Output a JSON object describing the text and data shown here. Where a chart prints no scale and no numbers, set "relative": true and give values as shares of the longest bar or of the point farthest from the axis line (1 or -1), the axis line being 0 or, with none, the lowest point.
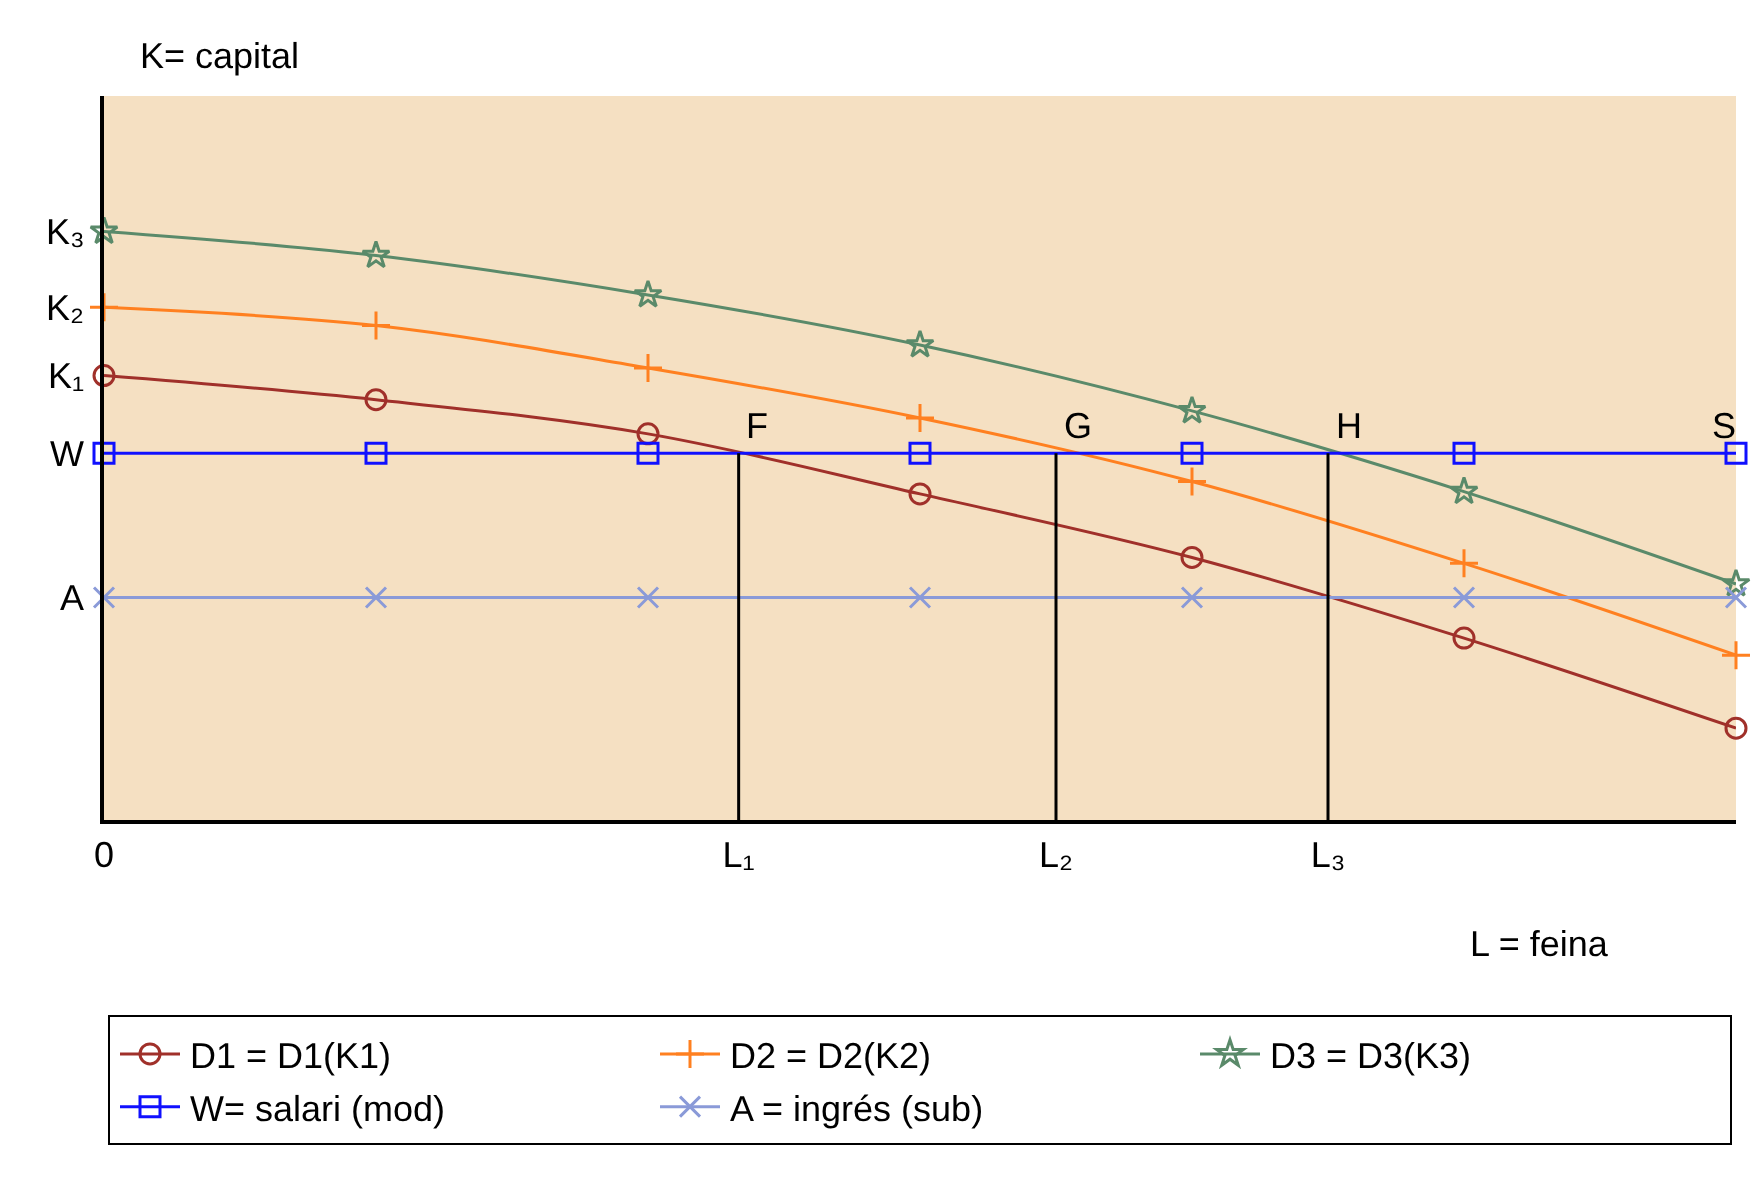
{
  "chart_data": {
    "type": "line",
    "relative": true,
    "ylabel": "K= capital",
    "xlabel": "L = feina",
    "categories": [
      "0",
      null,
      null,
      null,
      null,
      null,
      null,
      null,
      null,
      null,
      null,
      null,
      null,
      null,
      "L₁",
      null,
      null,
      null,
      null,
      null,
      null,
      "L₂",
      null,
      null,
      null,
      null,
      null,
      "L₃",
      null,
      null,
      null,
      null,
      null,
      null,
      null,
      null,
      null
    ],
    "series": [
      {
        "name": "D1 = D1(K1)",
        "color": "#a0302a",
        "marker": "circle",
        "values": [
          0.755,
          null,
          null,
          null,
          null,
          null,
          0.714,
          null,
          null,
          null,
          null,
          null,
          0.656,
          null,
          null,
          null,
          null,
          null,
          0.554,
          null,
          null,
          null,
          null,
          null,
          0.446,
          null,
          null,
          null,
          null,
          null,
          0.309,
          null,
          null,
          null,
          null,
          null,
          0.156
        ]
      },
      {
        "name": "D2 = D2(K2)",
        "color": "#ff8020",
        "marker": "cross",
        "values": [
          0.871,
          null,
          null,
          null,
          null,
          null,
          0.84,
          null,
          null,
          null,
          null,
          null,
          0.768,
          null,
          null,
          null,
          null,
          null,
          0.683,
          null,
          null,
          null,
          null,
          null,
          0.575,
          null,
          null,
          null,
          null,
          null,
          0.436,
          null,
          null,
          null,
          null,
          null,
          0.28
        ]
      },
      {
        "name": "D3 = D3(K3)",
        "color": "#5a8a6a",
        "marker": "star",
        "values": [
          1,
          null,
          null,
          null,
          null,
          null,
          0.959,
          null,
          null,
          null,
          null,
          null,
          0.892,
          null,
          null,
          null,
          null,
          null,
          0.807,
          null,
          null,
          null,
          null,
          null,
          0.695,
          null,
          null,
          null,
          null,
          null,
          0.558,
          null,
          null,
          null,
          null,
          null,
          0.401
        ]
      },
      {
        "name": "W= salari (mod)",
        "color": "#1010ff",
        "marker": "square",
        "values": [
          0.623,
          null,
          null,
          null,
          null,
          null,
          0.623,
          null,
          null,
          null,
          null,
          null,
          0.623,
          null,
          null,
          null,
          null,
          null,
          0.623,
          null,
          null,
          null,
          null,
          null,
          0.623,
          null,
          null,
          null,
          null,
          null,
          0.623,
          null,
          null,
          null,
          null,
          null,
          0.623
        ]
      },
      {
        "name": "A = ingrés (sub)",
        "color": "#8a9ad8",
        "marker": "cross-x",
        "values": [
          0.378,
          null,
          null,
          null,
          null,
          null,
          0.378,
          null,
          null,
          null,
          null,
          null,
          0.378,
          null,
          null,
          null,
          null,
          null,
          0.378,
          null,
          null,
          null,
          null,
          null,
          0.378,
          null,
          null,
          null,
          null,
          null,
          0.378,
          null,
          null,
          null,
          null,
          null,
          0.378
        ]
      }
    ],
    "ref_lines": [
      {
        "axis": "x",
        "value": "L₁",
        "color": "#000000"
      },
      {
        "axis": "x",
        "value": "L₂",
        "color": "#000000"
      },
      {
        "axis": "x",
        "value": "L₃",
        "color": "#000000"
      }
    ],
    "annotations": [
      {
        "text": "F",
        "x": "L₁",
        "y": 0.623
      },
      {
        "text": "G",
        "x": "L₂",
        "y": 0.623
      },
      {
        "text": "H",
        "x": "L₃",
        "y": 0.623
      },
      "K₁",
      "K₂",
      "K₃",
      "W",
      "A",
      "S"
    ],
    "legend": "bottom",
    "grid": false,
    "line_style": "solid"
  }
}
